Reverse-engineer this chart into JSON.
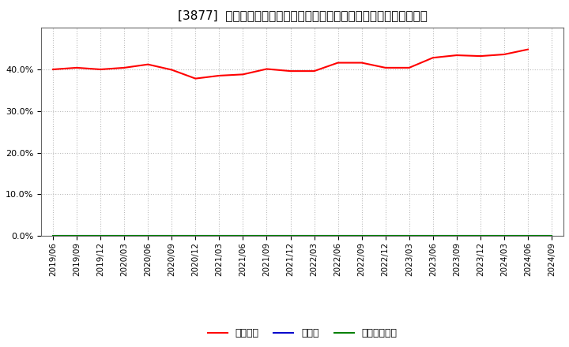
{
  "title": "[3877]  自己資本、のれん、繰延税金資産の総資産に対する比率の推移",
  "x_labels": [
    "2019/06",
    "2019/09",
    "2019/12",
    "2020/03",
    "2020/06",
    "2020/09",
    "2020/12",
    "2021/03",
    "2021/06",
    "2021/09",
    "2021/12",
    "2022/03",
    "2022/06",
    "2022/09",
    "2022/12",
    "2023/03",
    "2023/06",
    "2023/09",
    "2023/12",
    "2024/03",
    "2024/06",
    "2024/09"
  ],
  "jikoshihon": [
    0.4,
    0.404,
    0.4,
    0.404,
    0.412,
    0.399,
    0.378,
    0.385,
    0.388,
    0.401,
    0.396,
    0.396,
    0.416,
    0.416,
    0.404,
    0.404,
    0.428,
    0.434,
    0.432,
    0.436,
    0.448,
    null
  ],
  "noren": [
    0,
    0,
    0,
    0,
    0,
    0,
    0,
    0,
    0,
    0,
    0,
    0,
    0,
    0,
    0,
    0,
    0,
    0,
    0,
    0,
    0,
    0
  ],
  "kuenzeichin": [
    0,
    0,
    0,
    0,
    0,
    0,
    0,
    0,
    0,
    0,
    0,
    0,
    0,
    0,
    0,
    0,
    0,
    0,
    0,
    0,
    0,
    0
  ],
  "line_colors": {
    "jikoshihon": "#ff0000",
    "noren": "#0000cc",
    "kuenzeichin": "#008000"
  },
  "legend_labels": [
    "自己資本",
    "のれん",
    "繰延税金資産"
  ],
  "ylim": [
    0.0,
    0.5
  ],
  "yticks": [
    0.0,
    0.1,
    0.2,
    0.3,
    0.4
  ],
  "background_color": "#ffffff",
  "plot_bg_color": "#ffffff",
  "grid_color": "#bbbbbb",
  "title_fontsize": 11,
  "tick_fontsize": 7.5,
  "legend_fontsize": 9
}
